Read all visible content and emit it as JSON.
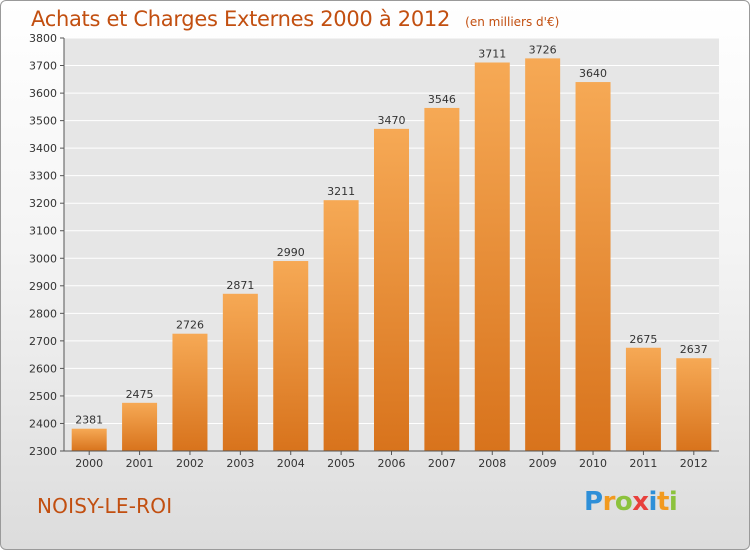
{
  "title": "Achats et Charges Externes 2000 à 2012",
  "unit_note": "(en milliers d'€)",
  "city": "NOISY-LE-ROI",
  "logo": {
    "text": "Proxiti",
    "letters": [
      {
        "ch": "P",
        "color": "#2e8fd8"
      },
      {
        "ch": "r",
        "color": "#f29a1f"
      },
      {
        "ch": "o",
        "color": "#8cc23d"
      },
      {
        "ch": "x",
        "color": "#e8403c"
      },
      {
        "ch": "i",
        "color": "#2e8fd8"
      },
      {
        "ch": "t",
        "color": "#f29a1f"
      },
      {
        "ch": "i",
        "color": "#8cc23d"
      }
    ]
  },
  "colors": {
    "bar_light": "#f6a955",
    "bar_dark": "#d8731c",
    "title": "#c24f10",
    "grid": "#ffffff",
    "plot_bg": "#e6e6e6"
  },
  "chart_data": {
    "type": "bar",
    "title": "Achats et Charges Externes 2000 à 2012",
    "subtitle": "(en milliers d'€)",
    "xlabel": "",
    "ylabel": "",
    "categories": [
      "2000",
      "2001",
      "2002",
      "2003",
      "2004",
      "2005",
      "2006",
      "2007",
      "2008",
      "2009",
      "2010",
      "2011",
      "2012"
    ],
    "values": [
      2381,
      2475,
      2726,
      2871,
      2990,
      3211,
      3470,
      3546,
      3711,
      3726,
      3640,
      2675,
      2637
    ],
    "ylim": [
      2300,
      3800
    ],
    "yticks": [
      2300,
      2400,
      2500,
      2600,
      2700,
      2800,
      2900,
      3000,
      3100,
      3200,
      3300,
      3400,
      3500,
      3600,
      3700,
      3800
    ],
    "grid": true,
    "data_labels": true
  }
}
